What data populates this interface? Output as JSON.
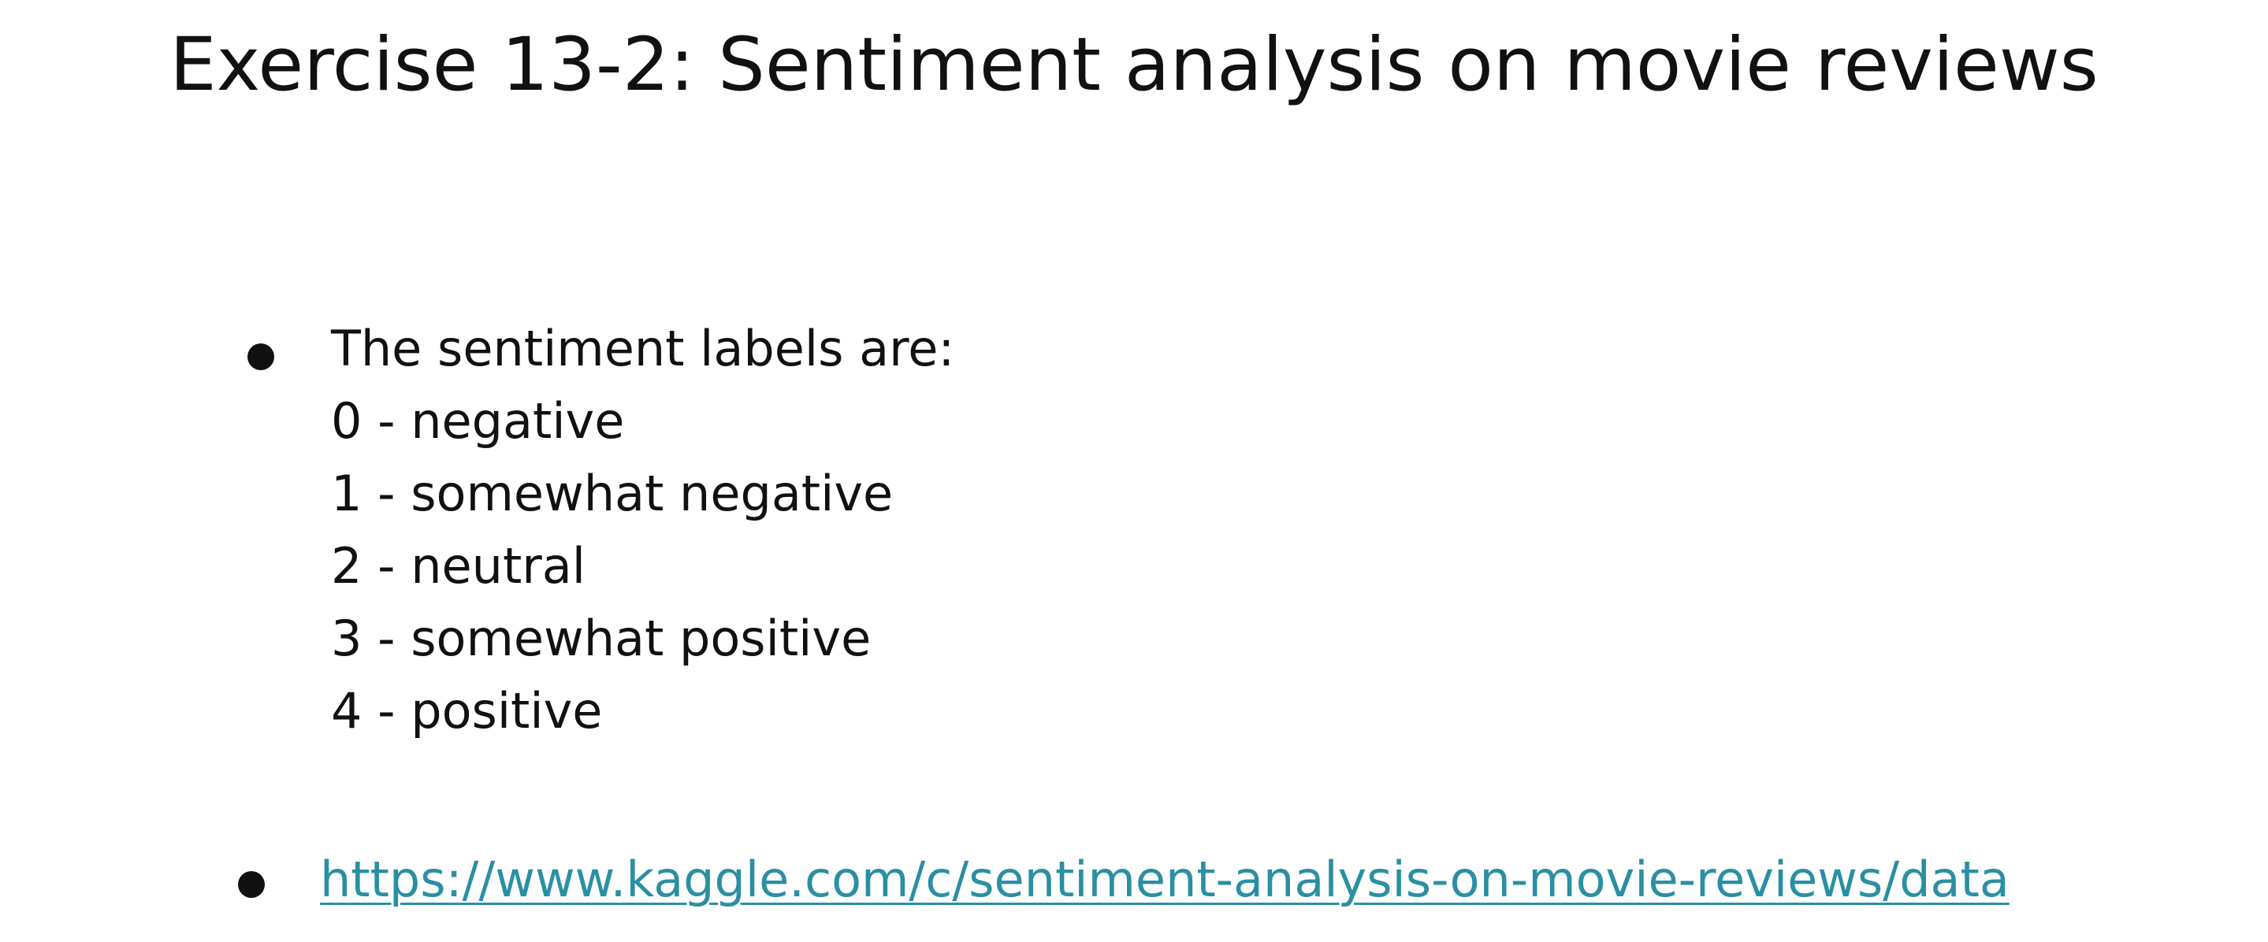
{
  "slide": {
    "title": "Exercise 13-2: Sentiment analysis on movie reviews",
    "bullets": [
      {
        "heading": "The sentiment labels are:",
        "items": [
          "0 - negative",
          "1 - somewhat negative",
          "2 - neutral",
          "3 - somewhat positive",
          "4 - positive"
        ]
      },
      {
        "link_text": "https://www.kaggle.com/c/sentiment-analysis-on-movie-reviews/data"
      }
    ]
  },
  "colors": {
    "text": "#111111",
    "link": "#2b8fa3",
    "background": "#ffffff"
  }
}
